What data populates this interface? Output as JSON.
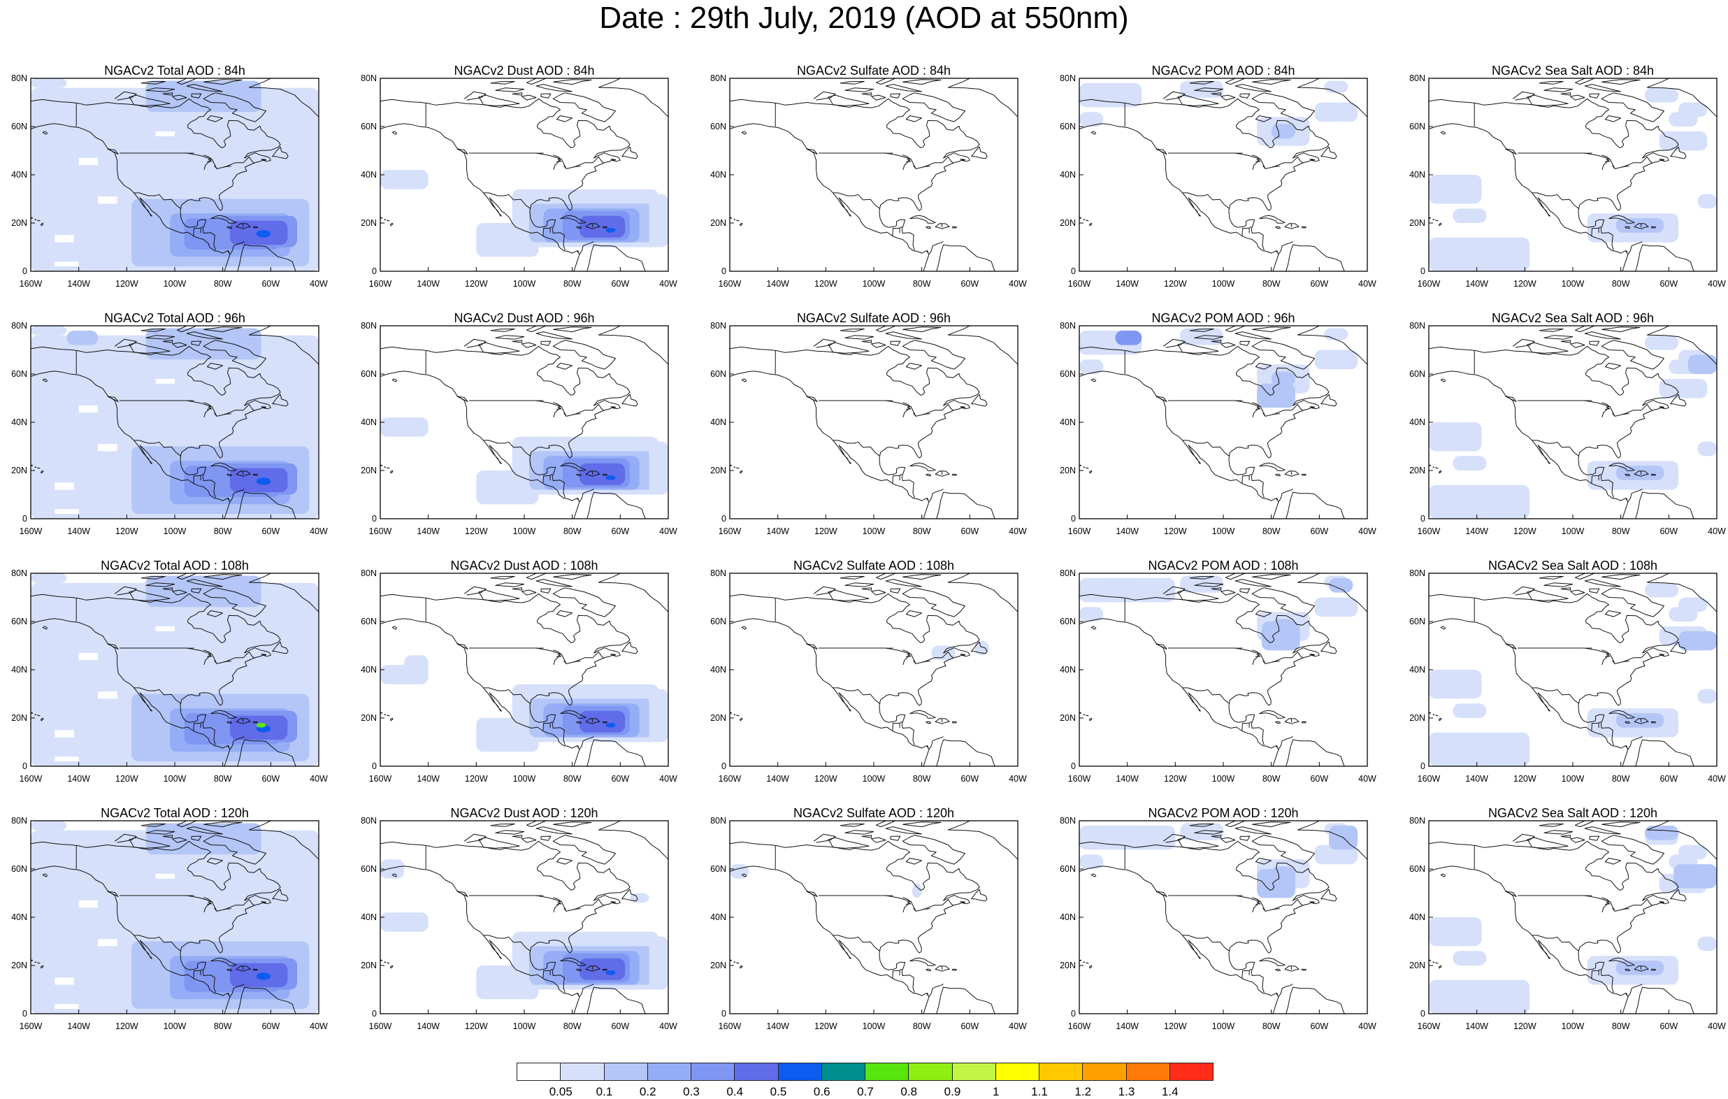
{
  "title": "Date : 29th July, 2019 (AOD at 550nm)",
  "axes": {
    "y_ticks": [
      "80N",
      "60N",
      "40N",
      "20N",
      "0"
    ],
    "x_ticks": [
      "160W",
      "140W",
      "120W",
      "100W",
      "80W",
      "60W",
      "40W"
    ],
    "lon_range": [
      -160,
      -40
    ],
    "lat_range": [
      0,
      80
    ]
  },
  "colors": {
    "map_outline": "#111111",
    "frame": "#000000"
  },
  "colorbar": {
    "colors": [
      "#ffffff",
      "#d6e0fb",
      "#b4c6f7",
      "#95adf6",
      "#7f97f2",
      "#616ce9",
      "#0d5cf0",
      "#008f8f",
      "#58e60f",
      "#8fee12",
      "#c3f547",
      "#ffff00",
      "#ffc800",
      "#ffa000",
      "#ff7a0a",
      "#ff2d1a"
    ],
    "labels": [
      "0.05",
      "0.1",
      "0.2",
      "0.3",
      "0.4",
      "0.5",
      "0.6",
      "0.7",
      "0.8",
      "0.9",
      "1",
      "1.1",
      "1.2",
      "1.3",
      "1.4"
    ]
  },
  "panels": [
    {
      "title": "NGACv2 Total AOD : 84h",
      "species": "total"
    },
    {
      "title": "NGACv2 Dust AOD : 84h",
      "species": "dust"
    },
    {
      "title": "NGACv2 Sulfate AOD : 84h",
      "species": "sulfate"
    },
    {
      "title": "NGACv2 POM AOD : 84h",
      "species": "pom"
    },
    {
      "title": "NGACv2 Sea Salt AOD : 84h",
      "species": "seasalt"
    },
    {
      "title": "NGACv2 Total AOD : 96h",
      "species": "total"
    },
    {
      "title": "NGACv2 Dust AOD : 96h",
      "species": "dust"
    },
    {
      "title": "NGACv2 Sulfate AOD : 96h",
      "species": "sulfate"
    },
    {
      "title": "NGACv2 POM AOD : 96h",
      "species": "pom"
    },
    {
      "title": "NGACv2 Sea Salt AOD : 96h",
      "species": "seasalt"
    },
    {
      "title": "NGACv2 Total AOD : 108h",
      "species": "total"
    },
    {
      "title": "NGACv2 Dust AOD : 108h",
      "species": "dust"
    },
    {
      "title": "NGACv2 Sulfate AOD : 108h",
      "species": "sulfate"
    },
    {
      "title": "NGACv2 POM AOD : 108h",
      "species": "pom"
    },
    {
      "title": "NGACv2 Sea Salt AOD : 108h",
      "species": "seasalt"
    },
    {
      "title": "NGACv2 Total AOD : 120h",
      "species": "total"
    },
    {
      "title": "NGACv2 Dust AOD : 120h",
      "species": "dust"
    },
    {
      "title": "NGACv2 Sulfate AOD : 120h",
      "species": "sulfate"
    },
    {
      "title": "NGACv2 POM AOD : 120h",
      "species": "pom"
    },
    {
      "title": "NGACv2 Sea Salt  AOD : 120h",
      "species": "seasalt"
    }
  ]
}
